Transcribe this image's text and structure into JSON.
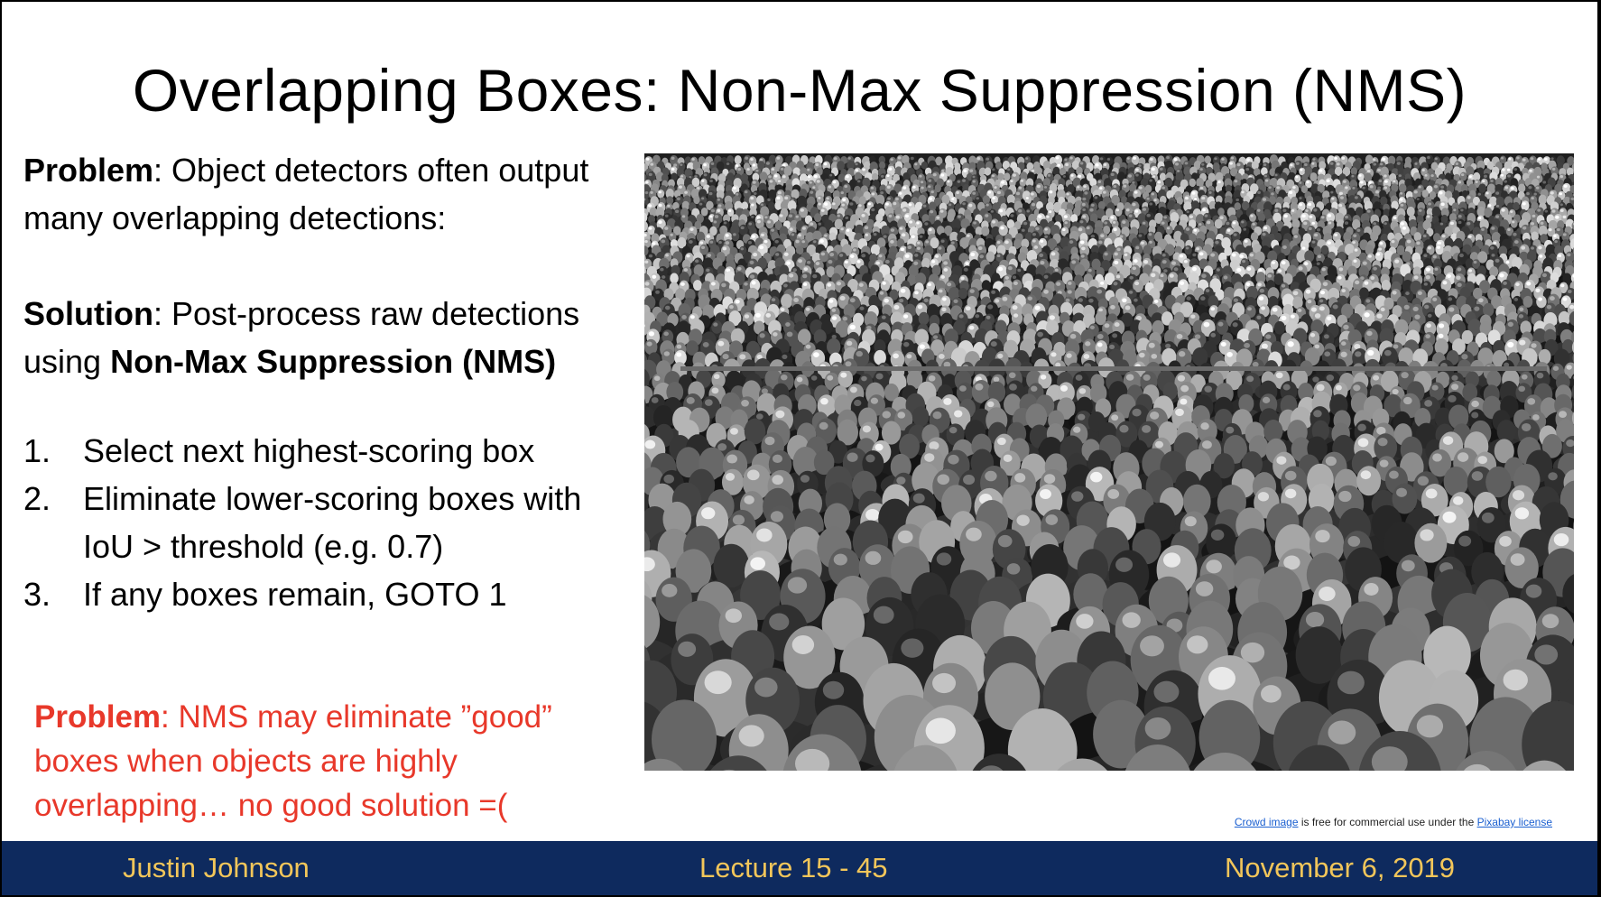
{
  "title": {
    "part1": "Overlapping Boxes: ",
    "part2": "Non-Max Suppression (NMS)"
  },
  "problem": {
    "label": "Problem",
    "text": ": Object detectors often output many overlapping detections:"
  },
  "solution": {
    "label": "Solution",
    "text1": ": Post-process raw detections using ",
    "bold": "Non-Max Suppression (NMS)"
  },
  "steps": [
    {
      "num": "1.",
      "text": "Select next highest-scoring box"
    },
    {
      "num": "2.",
      "text": "Eliminate lower-scoring boxes with IoU > threshold (e.g. 0.7)"
    },
    {
      "num": "3.",
      "text": "If any boxes remain, GOTO 1"
    }
  ],
  "problem2": {
    "label": "Problem",
    "text": ": NMS may eliminate ”good” boxes when objects are highly overlapping… no good solution =("
  },
  "credit": {
    "link1": "Crowd image",
    "middle": " is free for commercial use under the ",
    "link2": "Pixabay license"
  },
  "footer": {
    "author": "Justin Johnson",
    "lecture": "Lecture 15 - 45",
    "date": "November 6, 2019"
  },
  "colors": {
    "footer_bg": "#0e2a5e",
    "footer_text": "#f2c65a",
    "problem_red": "#e8382a",
    "link_blue": "#1a5fd0"
  }
}
